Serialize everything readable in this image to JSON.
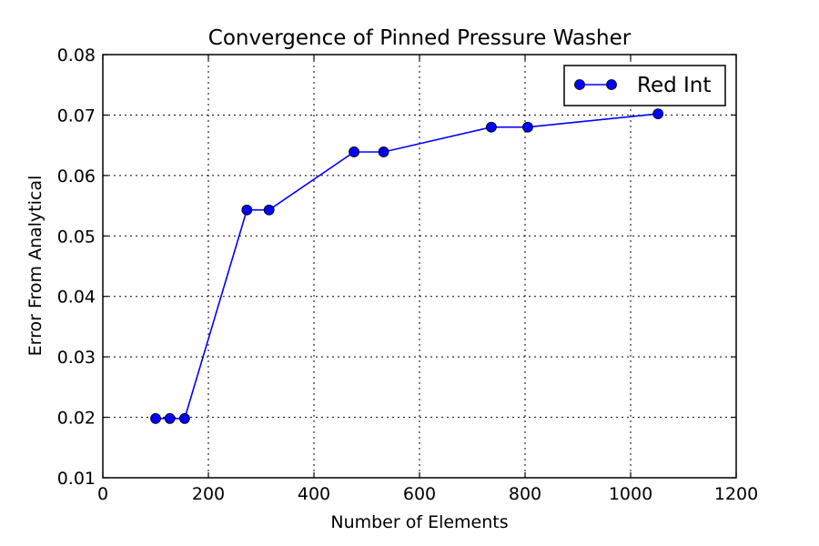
{
  "chart_data": {
    "type": "line",
    "title": "Convergence of Pinned Pressure Washer",
    "xlabel": "Number of Elements",
    "ylabel": "Error From Analytical",
    "xlim": [
      0,
      1200
    ],
    "ylim": [
      0.01,
      0.08
    ],
    "xticks": [
      "0",
      "200",
      "400",
      "600",
      "800",
      "1000",
      "1200"
    ],
    "yticks": [
      "0.01",
      "0.02",
      "0.03",
      "0.04",
      "0.05",
      "0.06",
      "0.07",
      "0.08"
    ],
    "grid": true,
    "legend_position": "top-right",
    "series": [
      {
        "name": "Red Int",
        "color": "#0000ff",
        "marker": "circle",
        "x": [
          100,
          127,
          155,
          273,
          315,
          476,
          532,
          736,
          805,
          1052
        ],
        "y": [
          0.0198,
          0.0198,
          0.0198,
          0.0543,
          0.0543,
          0.0639,
          0.0639,
          0.068,
          0.068,
          0.0702
        ]
      }
    ]
  }
}
